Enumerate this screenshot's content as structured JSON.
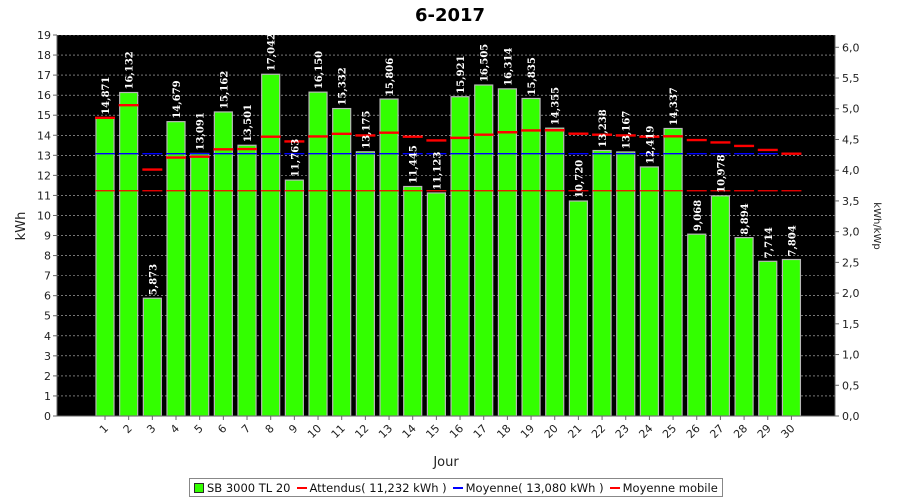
{
  "chart_data": {
    "type": "bar",
    "title": "6-2017",
    "xlabel": "Jour",
    "ylabel": "kWh",
    "y2label": "kWh/kWp",
    "ylim": [
      0,
      19
    ],
    "yticks": [
      "0",
      "1",
      "2",
      "3",
      "4",
      "5",
      "6",
      "7",
      "8",
      "9",
      "10",
      "11",
      "12",
      "13",
      "14",
      "15",
      "16",
      "17",
      "18",
      "19"
    ],
    "y2lim": [
      0,
      6.2
    ],
    "y2ticks": [
      "0,0",
      "0,5",
      "1,0",
      "1,5",
      "2,0",
      "2,5",
      "3,0",
      "3,5",
      "4,0",
      "4,5",
      "5,0",
      "5,5",
      "6,0"
    ],
    "categories": [
      "1",
      "2",
      "3",
      "4",
      "5",
      "6",
      "7",
      "8",
      "9",
      "10",
      "11",
      "12",
      "13",
      "14",
      "15",
      "16",
      "17",
      "18",
      "19",
      "20",
      "21",
      "22",
      "23",
      "24",
      "25",
      "26",
      "27",
      "28",
      "29",
      "30"
    ],
    "series": [
      {
        "name": "SB 3000 TL 20",
        "color": "#33ff00",
        "values": [
          14.871,
          16.132,
          5.873,
          14.679,
          13.091,
          15.162,
          13.501,
          17.042,
          11.763,
          16.15,
          15.332,
          13.175,
          15.806,
          11.445,
          11.123,
          15.921,
          16.505,
          16.314,
          15.835,
          14.355,
          10.72,
          13.238,
          13.167,
          12.419,
          14.337,
          9.068,
          10.978,
          8.894,
          7.714,
          7.804
        ],
        "labels": [
          "14,871",
          "16,132",
          "5,873",
          "14,679",
          "13,091",
          "15,162",
          "13,501",
          "17,042",
          "11,763",
          "16,150",
          "15,332",
          "13,175",
          "15,806",
          "11,445",
          "11,123",
          "15,921",
          "16,505",
          "16,314",
          "15,835",
          "14,355",
          "10,720",
          "13,238",
          "13,167",
          "12,419",
          "14,337",
          "9,068",
          "10,978",
          "8,894",
          "7,714",
          "7,804"
        ]
      }
    ],
    "expected": {
      "name": "Attendus( 11,232 kWh )",
      "value": 11.232,
      "color": "#ff0000"
    },
    "average": {
      "name": "Moyenne( 13,080 kWh )",
      "value": 13.08,
      "color": "#0000ff"
    },
    "moving_average": {
      "name": "Moyenne mobile",
      "color": "#ff0000",
      "values": [
        14.871,
        15.5,
        12.29,
        12.89,
        12.93,
        13.3,
        13.31,
        13.93,
        13.69,
        13.94,
        14.07,
        13.99,
        14.13,
        13.93,
        13.74,
        13.87,
        14.03,
        14.15,
        14.24,
        14.25,
        14.08,
        14.03,
        13.99,
        13.93,
        13.95,
        13.76,
        13.64,
        13.47,
        13.27,
        13.08
      ]
    },
    "grid": true,
    "legend_position": "bottom"
  }
}
